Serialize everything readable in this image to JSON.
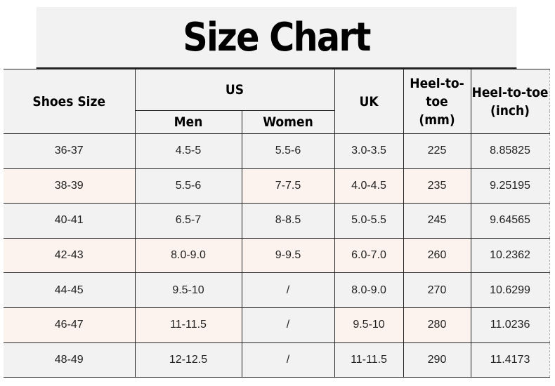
{
  "title": "Size Chart",
  "headers": {
    "shoes_size": "Shoes Size",
    "us": "US",
    "men": "Men",
    "women": "Women",
    "uk": "UK",
    "mm": "Heel-to-toe (mm)",
    "inch": "Heel-to-toe (inch)"
  },
  "colors": {
    "grey": "#f2f2f2",
    "pink": "#fdf3ee",
    "border": "#222222"
  },
  "rows": [
    {
      "cells": [
        "36-37",
        "4.5-5",
        "5.5-6",
        "3.0-3.5",
        "225",
        "8.85825"
      ],
      "pink": [
        false,
        false,
        false,
        false,
        false,
        false
      ]
    },
    {
      "cells": [
        "38-39",
        "5.5-6",
        "7-7.5",
        "4.0-4.5",
        "235",
        "9.25195"
      ],
      "pink": [
        true,
        false,
        true,
        true,
        true,
        false
      ]
    },
    {
      "cells": [
        "40-41",
        "6.5-7",
        "8-8.5",
        "5.0-5.5",
        "245",
        "9.64565"
      ],
      "pink": [
        false,
        false,
        false,
        false,
        false,
        false
      ]
    },
    {
      "cells": [
        "42-43",
        "8.0-9.0",
        "9-9.5",
        "6.0-7.0",
        "260",
        "10.2362"
      ],
      "pink": [
        true,
        true,
        true,
        true,
        true,
        false
      ]
    },
    {
      "cells": [
        "44-45",
        "9.5-10",
        "/",
        "8.0-9.0",
        "270",
        "10.6299"
      ],
      "pink": [
        false,
        false,
        false,
        false,
        false,
        false
      ]
    },
    {
      "cells": [
        "46-47",
        "11-11.5",
        "/",
        "9.5-10",
        "280",
        "11.0236"
      ],
      "pink": [
        true,
        true,
        false,
        true,
        true,
        false
      ]
    },
    {
      "cells": [
        "48-49",
        "12-12.5",
        "/",
        "11-11.5",
        "290",
        "11.4173"
      ],
      "pink": [
        false,
        false,
        false,
        false,
        false,
        false
      ]
    }
  ]
}
